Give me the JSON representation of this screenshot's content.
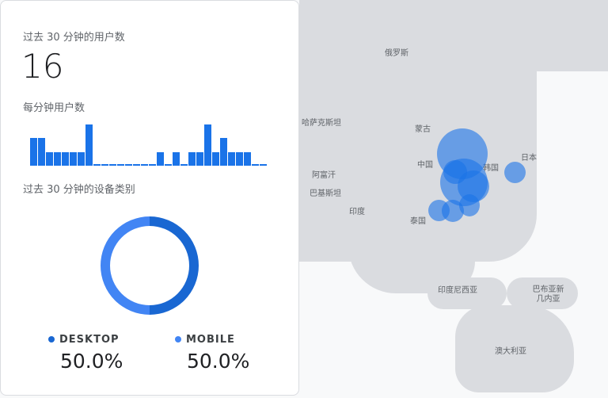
{
  "card": {
    "users_title": "过去 30 分钟的用户数",
    "users_count": "16",
    "per_minute_title": "每分钟用户数",
    "per_minute_values": [
      2,
      2,
      1,
      1,
      1,
      1,
      1,
      3,
      0,
      0,
      0,
      0,
      0,
      0,
      0,
      0,
      1,
      0,
      1,
      0,
      1,
      1,
      3,
      1,
      2,
      1,
      1,
      1,
      0,
      0
    ],
    "device_title": "过去 30 分钟的设备类别",
    "devices": [
      {
        "label": "DESKTOP",
        "percent": "50.0%",
        "color": "#1967d2"
      },
      {
        "label": "MOBILE",
        "percent": "50.0%",
        "color": "#4285f4"
      }
    ]
  },
  "map": {
    "labels": [
      "俄罗斯",
      "哈萨克斯坦",
      "蒙古",
      "中国",
      "韩国",
      "日本",
      "阿富汗",
      "巴基斯坦",
      "印度",
      "泰国",
      "印度尼西亚",
      "巴布亚新几内亚",
      "澳大利亚"
    ],
    "bubble_color": "#1a73e8"
  }
}
